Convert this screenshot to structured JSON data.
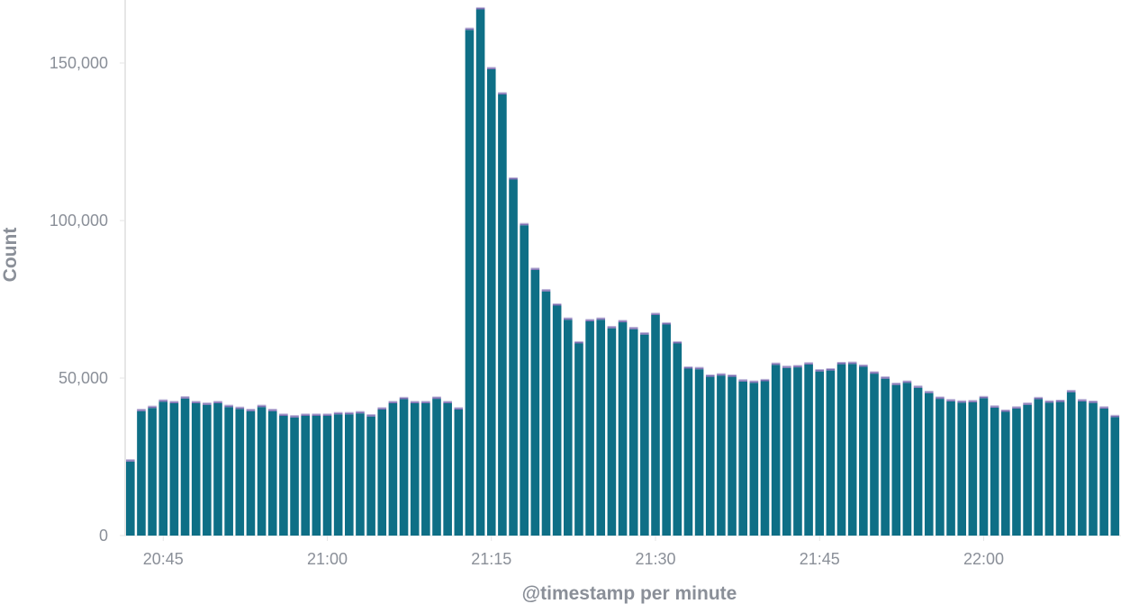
{
  "chart_data": {
    "type": "bar",
    "stacked": true,
    "xlabel": "@timestamp per minute",
    "ylabel": "Count",
    "ylim": [
      0,
      170000
    ],
    "y_ticks": [
      0,
      50000,
      100000,
      150000
    ],
    "y_tick_labels": [
      "0",
      "50,000",
      "100,000",
      "150,000"
    ],
    "x_range": [
      "20:42",
      "22:12"
    ],
    "x_ticks": [
      "20:45",
      "21:00",
      "21:15",
      "21:30",
      "21:45",
      "22:00"
    ],
    "grid": false,
    "legend": "none",
    "colors": {
      "bar": "#0e6f86",
      "cap": "#7f6fb3",
      "cap_light": "#b9b1d6",
      "axis": "#e6e6e6",
      "text": "#8a8f98"
    },
    "x": [
      "20:42",
      "20:43",
      "20:44",
      "20:45",
      "20:46",
      "20:47",
      "20:48",
      "20:49",
      "20:50",
      "20:51",
      "20:52",
      "20:53",
      "20:54",
      "20:55",
      "20:56",
      "20:57",
      "20:58",
      "20:59",
      "21:00",
      "21:01",
      "21:02",
      "21:03",
      "21:04",
      "21:05",
      "21:06",
      "21:07",
      "21:08",
      "21:09",
      "21:10",
      "21:11",
      "21:12",
      "21:13",
      "21:14",
      "21:15",
      "21:16",
      "21:17",
      "21:18",
      "21:19",
      "21:20",
      "21:21",
      "21:22",
      "21:23",
      "21:24",
      "21:25",
      "21:26",
      "21:27",
      "21:28",
      "21:29",
      "21:30",
      "21:31",
      "21:32",
      "21:33",
      "21:34",
      "21:35",
      "21:36",
      "21:37",
      "21:38",
      "21:39",
      "21:40",
      "21:41",
      "21:42",
      "21:43",
      "21:44",
      "21:45",
      "21:46",
      "21:47",
      "21:48",
      "21:49",
      "21:50",
      "21:51",
      "21:52",
      "21:53",
      "21:54",
      "21:55",
      "21:56",
      "21:57",
      "21:58",
      "21:59",
      "22:00",
      "22:01",
      "22:02",
      "22:03",
      "22:04",
      "22:05",
      "22:06",
      "22:07",
      "22:08",
      "22:09",
      "22:10",
      "22:11",
      "22:12"
    ],
    "values": [
      23500,
      39500,
      40500,
      42500,
      42000,
      43500,
      42000,
      41500,
      42000,
      40800,
      40200,
      39500,
      40800,
      39500,
      38000,
      37500,
      38000,
      38000,
      38000,
      38500,
      38500,
      38800,
      37800,
      40000,
      42000,
      43300,
      42000,
      42000,
      43400,
      42000,
      40000,
      160500,
      167000,
      148000,
      140000,
      113000,
      98500,
      84300,
      77500,
      73000,
      68500,
      61000,
      68000,
      68500,
      65800,
      67700,
      65500,
      63800,
      70000,
      67000,
      61000,
      53000,
      52800,
      50400,
      50800,
      50400,
      48900,
      48500,
      49000,
      54200,
      53200,
      53400,
      54300,
      52100,
      52400,
      54400,
      54500,
      53600,
      51400,
      49800,
      47800,
      48500,
      46900,
      45200,
      43400,
      42600,
      42200,
      42300,
      43600,
      40600,
      39300,
      40300,
      41500,
      43300,
      42200,
      42400,
      45500,
      42600,
      42100,
      40300,
      37600
    ]
  }
}
